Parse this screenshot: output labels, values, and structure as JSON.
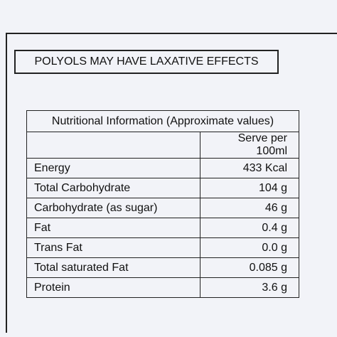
{
  "warning": "POLYOLS MAY HAVE LAXATIVE EFFECTS",
  "table": {
    "title": "Nutritional Information (Approximate values)",
    "column_header": "Serve per 100ml",
    "rows": [
      [
        "Energy",
        "433 Kcal"
      ],
      [
        "Total Carbohydrate",
        "104 g"
      ],
      [
        "Carbohydrate (as sugar)",
        "46 g"
      ],
      [
        "Fat",
        "0.4 g"
      ],
      [
        "Trans Fat",
        "0.0 g"
      ],
      [
        "Total saturated Fat",
        "0.085 g"
      ],
      [
        "Protein",
        "3.6 g"
      ]
    ]
  }
}
